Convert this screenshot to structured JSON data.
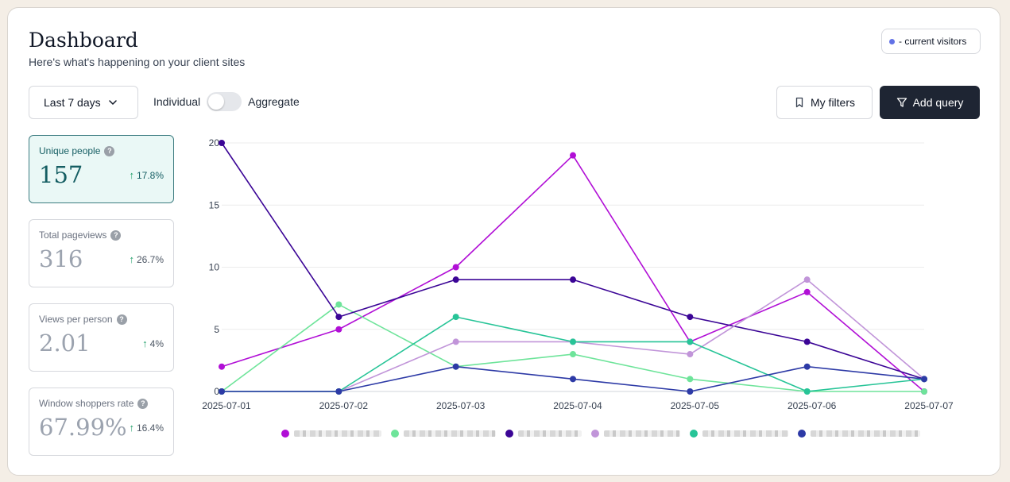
{
  "header": {
    "title": "Dashboard",
    "subtitle": "Here's what's happening on your client sites"
  },
  "visitors_badge": {
    "label": "- current visitors",
    "color": "#6272e6"
  },
  "controls": {
    "date_range": "Last 7 days",
    "toggle_left": "Individual",
    "toggle_right": "Aggregate",
    "my_filters": "My filters",
    "add_query": "Add query"
  },
  "stats": [
    {
      "label": "Unique people",
      "value": "157",
      "change": "17.8%",
      "active": true
    },
    {
      "label": "Total pageviews",
      "value": "316",
      "change": "26.7%"
    },
    {
      "label": "Views per person",
      "value": "2.01",
      "change": "4%"
    },
    {
      "label": "Window shoppers rate",
      "value": "67.99%",
      "change": "16.4%"
    }
  ],
  "help_glyph": "?",
  "chart_data": {
    "type": "line",
    "x": [
      "2025-07-01",
      "2025-07-02",
      "2025-07-03",
      "2025-07-04",
      "2025-07-05",
      "2025-07-06",
      "2025-07-07"
    ],
    "ylim": [
      0,
      20
    ],
    "yticks": [
      0,
      5,
      10,
      15,
      20
    ],
    "grid": true,
    "legend_position": "bottom",
    "series": [
      {
        "color": "#b10fd6",
        "values": [
          2,
          5,
          10,
          19,
          4,
          8,
          0
        ]
      },
      {
        "color": "#6ee49a",
        "values": [
          0,
          7,
          2,
          3,
          1,
          0,
          0
        ]
      },
      {
        "color": "#3b0596",
        "values": [
          20,
          6,
          9,
          9,
          6,
          4,
          1
        ]
      },
      {
        "color": "#c195d9",
        "values": [
          0,
          0,
          4,
          4,
          3,
          9,
          1
        ]
      },
      {
        "color": "#27c497",
        "values": [
          0,
          0,
          6,
          4,
          4,
          0,
          1
        ]
      },
      {
        "color": "#2d3aa6",
        "values": [
          0,
          0,
          2,
          1,
          0,
          2,
          1
        ]
      }
    ]
  }
}
